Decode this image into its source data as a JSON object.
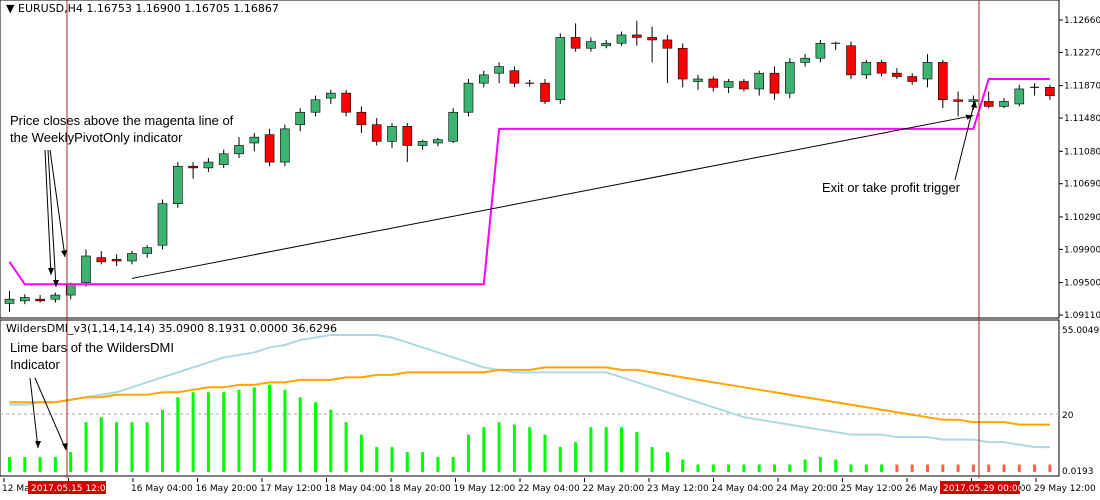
{
  "window": {
    "symbol_menu_icon": "triangle-down-icon",
    "title": "EURUSD,H4  1.16753 1.16900 1.16705 1.16867"
  },
  "indicator": {
    "title": "WildersDMI_v3(1,14,14,14) 35.0900 8.1931 0.0000 36.6296",
    "scale_top": "55.0049",
    "scale_20": "20",
    "scale_bottom": "0.0193"
  },
  "annotations": {
    "price_close_line1": "Price closes above the magenta line of",
    "price_close_line2": "the WeeklyPivotOnly indicator",
    "exit_trigger": "Exit or take profit trigger",
    "lime_line1": "Lime bars of the WildersDMI",
    "lime_line2": "Indicator"
  },
  "time_axis": {
    "labels": [
      "12 May 2017",
      "12:00",
      "16 May 04:00",
      "16 May 20:00",
      "17 May 12:00",
      "18 May 04:00",
      "18 May 20:00",
      "19 May 12:00",
      "22 May 04:00",
      "22 May 20:00",
      "23 May 12:00",
      "24 May 04:00",
      "24 May 20:00",
      "25 May 12:00",
      "26 May 04:00",
      "26 May 20:00",
      "29 May 12:00"
    ],
    "marker_left": "2017.05.15 12:00",
    "marker_right": "2017.05.29 00:00"
  },
  "colors": {
    "bull": "#3CB371",
    "bear": "#FF0000",
    "pivot": "#FF00FF",
    "dmi_lime": "#00FF00",
    "dmi_red": "#FF6347",
    "adx": "#FFA500",
    "adxr": "#ADD8E6",
    "vline": "#B22222",
    "marker_bg": "#D40000"
  },
  "chart_data": [
    {
      "type": "candlestick",
      "title": "EURUSD,H4",
      "y_ticks": [
        "1.12660",
        "1.12270",
        "1.11870",
        "1.11480",
        "1.11080",
        "1.10690",
        "1.10290",
        "1.09900",
        "1.09500",
        "1.09110"
      ],
      "ylim": [
        1.0911,
        1.1266
      ],
      "ohlc": [
        [
          1.0925,
          1.094,
          1.0915,
          1.093
        ],
        [
          1.0928,
          1.0936,
          1.0924,
          1.0932
        ],
        [
          1.093,
          1.0935,
          1.0926,
          1.0928
        ],
        [
          1.093,
          1.0938,
          1.0926,
          1.0935
        ],
        [
          1.0935,
          1.095,
          1.093,
          1.0948
        ],
        [
          1.095,
          1.099,
          1.0945,
          1.0982
        ],
        [
          1.098,
          1.0988,
          1.0972,
          1.0975
        ],
        [
          1.0978,
          1.0984,
          1.097,
          1.0976
        ],
        [
          1.0976,
          1.0988,
          1.0972,
          1.0985
        ],
        [
          1.0985,
          1.0995,
          1.098,
          1.0992
        ],
        [
          1.0995,
          1.105,
          1.099,
          1.1045
        ],
        [
          1.1045,
          1.1095,
          1.104,
          1.109
        ],
        [
          1.109,
          1.1095,
          1.1075,
          1.1088
        ],
        [
          1.1088,
          1.11,
          1.1083,
          1.1095
        ],
        [
          1.1092,
          1.111,
          1.1088,
          1.1105
        ],
        [
          1.1105,
          1.1125,
          1.11,
          1.1115
        ],
        [
          1.1118,
          1.113,
          1.1108,
          1.1125
        ],
        [
          1.1128,
          1.1135,
          1.109,
          1.1095
        ],
        [
          1.1095,
          1.114,
          1.109,
          1.1135
        ],
        [
          1.114,
          1.116,
          1.1132,
          1.1155
        ],
        [
          1.1155,
          1.1175,
          1.115,
          1.117
        ],
        [
          1.1172,
          1.1182,
          1.1165,
          1.1178
        ],
        [
          1.1178,
          1.1182,
          1.115,
          1.1155
        ],
        [
          1.1155,
          1.1162,
          1.113,
          1.114
        ],
        [
          1.114,
          1.1148,
          1.1115,
          1.112
        ],
        [
          1.112,
          1.1142,
          1.1112,
          1.1138
        ],
        [
          1.1138,
          1.1142,
          1.1095,
          1.1115
        ],
        [
          1.1115,
          1.1122,
          1.111,
          1.112
        ],
        [
          1.1118,
          1.1124,
          1.1114,
          1.1122
        ],
        [
          1.112,
          1.116,
          1.1118,
          1.1155
        ],
        [
          1.1155,
          1.1195,
          1.115,
          1.119
        ],
        [
          1.119,
          1.1205,
          1.1185,
          1.12
        ],
        [
          1.1202,
          1.1215,
          1.119,
          1.121
        ],
        [
          1.1205,
          1.121,
          1.1185,
          1.119
        ],
        [
          1.119,
          1.1194,
          1.1186,
          1.119
        ],
        [
          1.119,
          1.1195,
          1.1165,
          1.1168
        ],
        [
          1.117,
          1.125,
          1.1165,
          1.1245
        ],
        [
          1.1245,
          1.1262,
          1.1228,
          1.1232
        ],
        [
          1.1232,
          1.1245,
          1.1228,
          1.124
        ],
        [
          1.1235,
          1.1242,
          1.1232,
          1.1238
        ],
        [
          1.1238,
          1.1252,
          1.1235,
          1.1248
        ],
        [
          1.1248,
          1.1265,
          1.1235,
          1.1245
        ],
        [
          1.1245,
          1.1258,
          1.1215,
          1.1242
        ],
        [
          1.1242,
          1.1248,
          1.119,
          1.1232
        ],
        [
          1.1232,
          1.1238,
          1.1185,
          1.1195
        ],
        [
          1.1192,
          1.12,
          1.1182,
          1.1195
        ],
        [
          1.1195,
          1.1198,
          1.118,
          1.1185
        ],
        [
          1.1185,
          1.1195,
          1.1178,
          1.1192
        ],
        [
          1.1192,
          1.1195,
          1.118,
          1.1183
        ],
        [
          1.1183,
          1.1205,
          1.1175,
          1.1202
        ],
        [
          1.1202,
          1.121,
          1.117,
          1.1178
        ],
        [
          1.1178,
          1.122,
          1.1172,
          1.1215
        ],
        [
          1.1215,
          1.1225,
          1.121,
          1.122
        ],
        [
          1.122,
          1.1242,
          1.1215,
          1.1238
        ],
        [
          1.1238,
          1.124,
          1.123,
          1.1238
        ],
        [
          1.1235,
          1.124,
          1.1195,
          1.12
        ],
        [
          1.12,
          1.1218,
          1.1195,
          1.1215
        ],
        [
          1.1215,
          1.1218,
          1.1198,
          1.1202
        ],
        [
          1.1202,
          1.1208,
          1.1195,
          1.1198
        ],
        [
          1.1198,
          1.1202,
          1.1188,
          1.1192
        ],
        [
          1.1195,
          1.1225,
          1.1185,
          1.1215
        ],
        [
          1.1215,
          1.1218,
          1.116,
          1.117
        ],
        [
          1.117,
          1.118,
          1.115,
          1.1168
        ],
        [
          1.1168,
          1.1175,
          1.1158,
          1.117
        ],
        [
          1.1168,
          1.118,
          1.116,
          1.1162
        ],
        [
          1.1162,
          1.1172,
          1.116,
          1.1168
        ],
        [
          1.1165,
          1.1188,
          1.1162,
          1.1183
        ],
        [
          1.1185,
          1.119,
          1.1175,
          1.1185
        ],
        [
          1.1185,
          1.1188,
          1.117,
          1.1175
        ]
      ],
      "pivot_line": [
        [
          0,
          1.0975
        ],
        [
          1,
          1.0948
        ],
        [
          31,
          1.0948
        ],
        [
          32,
          1.1135
        ],
        [
          63,
          1.1135
        ],
        [
          64,
          1.1195
        ],
        [
          68,
          1.1195
        ]
      ],
      "arrow_line": {
        "from": [
          8,
          1.0955
        ],
        "to": [
          63,
          1.1151
        ]
      }
    },
    {
      "type": "bar",
      "title": "WildersDMI_v3(1,14,14,14)",
      "ylim": [
        0,
        55
      ],
      "y_ticks": [
        "55.0049",
        "20",
        "0.0193"
      ],
      "values": [
        6,
        6,
        6,
        6,
        8,
        20,
        22,
        20,
        20,
        20,
        25,
        30,
        32,
        32,
        32,
        33,
        34,
        35,
        33,
        30,
        28,
        25,
        20,
        15,
        10,
        10,
        8,
        8,
        6,
        6,
        15,
        18,
        20,
        19,
        18,
        15,
        10,
        12,
        18,
        18,
        18,
        16,
        10,
        8,
        5,
        3,
        3,
        3,
        3,
        3,
        3,
        3,
        5,
        6,
        5,
        3,
        3,
        3,
        3,
        3,
        3,
        3,
        3,
        3,
        3,
        3,
        3,
        3,
        3
      ],
      "red_indices": [
        58,
        59,
        60,
        61,
        62,
        63,
        64,
        65,
        66,
        67,
        68
      ],
      "adx": [
        28,
        28,
        28,
        28,
        29,
        30,
        30,
        31,
        31,
        31,
        32,
        32,
        33,
        34,
        34,
        35,
        35,
        36,
        36,
        37,
        37,
        37,
        38,
        38,
        39,
        39,
        40,
        40,
        40,
        40,
        40,
        40,
        41,
        41,
        41,
        42,
        42,
        42,
        42,
        42,
        41,
        41,
        40,
        39,
        38,
        37,
        36,
        35,
        34,
        33,
        32,
        31,
        30,
        29,
        28,
        27,
        26,
        25,
        24,
        23,
        22,
        21,
        21,
        20,
        20,
        20,
        19,
        19,
        19
      ],
      "adxr": [
        27,
        27,
        28,
        28,
        29,
        30,
        31,
        32,
        34,
        36,
        38,
        40,
        42,
        44,
        46,
        47,
        48,
        50,
        51,
        53,
        54,
        55,
        55,
        55,
        55,
        54,
        52,
        50,
        48,
        46,
        44,
        42,
        41,
        40,
        40,
        40,
        40,
        40,
        40,
        40,
        38,
        36,
        34,
        32,
        30,
        28,
        26,
        24,
        22,
        21,
        20,
        19,
        18,
        17,
        16,
        15,
        15,
        15,
        14,
        14,
        14,
        13,
        13,
        13,
        12,
        12,
        11,
        10,
        10
      ]
    }
  ]
}
